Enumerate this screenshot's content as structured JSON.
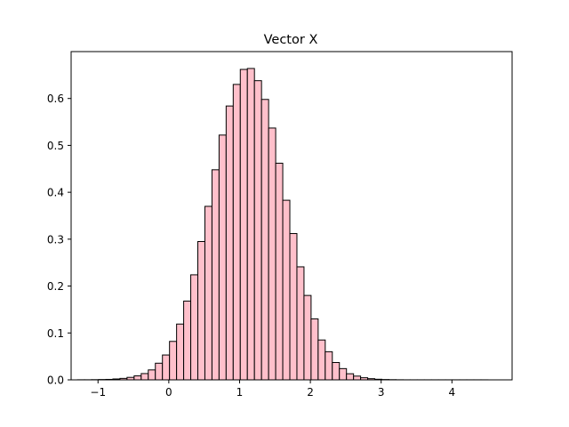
{
  "chart_data": {
    "type": "bar",
    "title": "Vector X",
    "xlabel": "",
    "ylabel": "",
    "xlim": [
      -1.38,
      4.85
    ],
    "ylim": [
      0,
      0.7
    ],
    "x_ticks": [
      -1,
      0,
      1,
      2,
      3,
      4
    ],
    "x_tick_labels": [
      "−1",
      "0",
      "1",
      "2",
      "3",
      "4"
    ],
    "y_ticks": [
      0.0,
      0.1,
      0.2,
      0.3,
      0.4,
      0.5,
      0.6
    ],
    "y_tick_labels": [
      "0.0",
      "0.1",
      "0.2",
      "0.3",
      "0.4",
      "0.5",
      "0.6"
    ],
    "bin_width": 0.1,
    "bin_start": -1.29,
    "bar_color": "#ffc0cb",
    "edge_color": "#000000",
    "values": [
      0.0002,
      0.0002,
      0.0004,
      0.0007,
      0.001,
      0.0019,
      0.0031,
      0.0053,
      0.0085,
      0.0134,
      0.0212,
      0.0355,
      0.053,
      0.082,
      0.119,
      0.168,
      0.224,
      0.295,
      0.37,
      0.448,
      0.522,
      0.584,
      0.63,
      0.662,
      0.664,
      0.638,
      0.598,
      0.537,
      0.462,
      0.383,
      0.312,
      0.241,
      0.18,
      0.13,
      0.085,
      0.06,
      0.037,
      0.024,
      0.013,
      0.008,
      0.0045,
      0.0025,
      0.0013,
      0.0007,
      0.0004,
      0.0002,
      0.0001,
      0.0001,
      0.0001,
      0.0001,
      0.0001,
      0.0001,
      0.0001,
      0.0001,
      0.0001,
      0.0001,
      0.0001,
      0.0001
    ],
    "grid": false
  }
}
